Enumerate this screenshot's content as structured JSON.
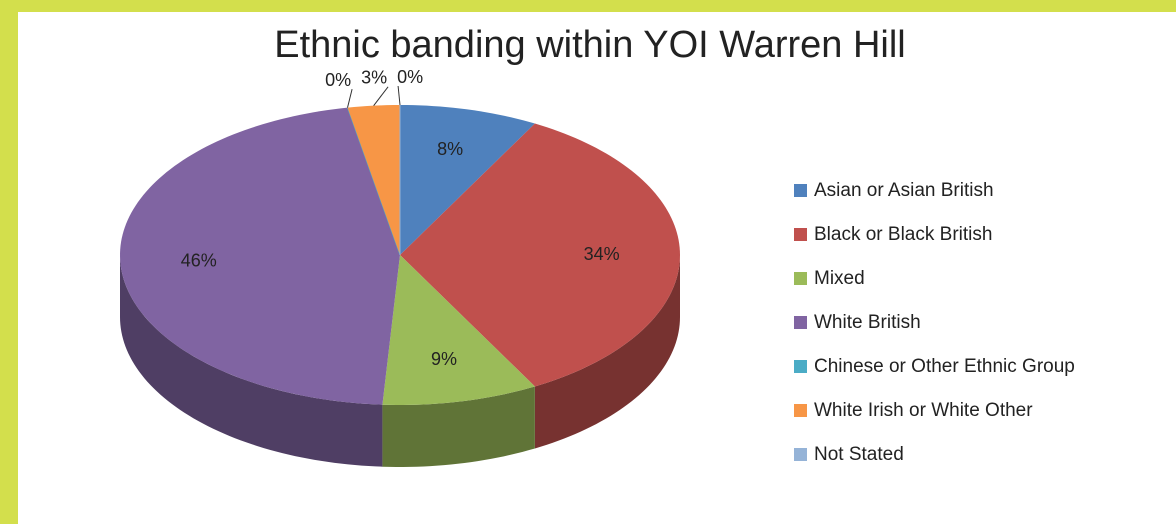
{
  "chart_data": {
    "type": "pie",
    "title": "Ethnic banding within YOI Warren Hill",
    "categories": [
      "Asian or Asian British",
      "Black or Black British",
      "Mixed",
      "White British",
      "Chinese or Other Ethnic Group",
      "White Irish or White Other",
      "Not Stated"
    ],
    "values": [
      8,
      34,
      9,
      46,
      0,
      3,
      0
    ],
    "value_labels": [
      "8%",
      "34%",
      "9%",
      "46%",
      "0%",
      "3%",
      "0%"
    ],
    "colors": [
      "#4f81bd",
      "#c0504d",
      "#9bbb59",
      "#8064a2",
      "#4bacc6",
      "#f79646",
      "#95b3d7"
    ],
    "legend": "right"
  }
}
